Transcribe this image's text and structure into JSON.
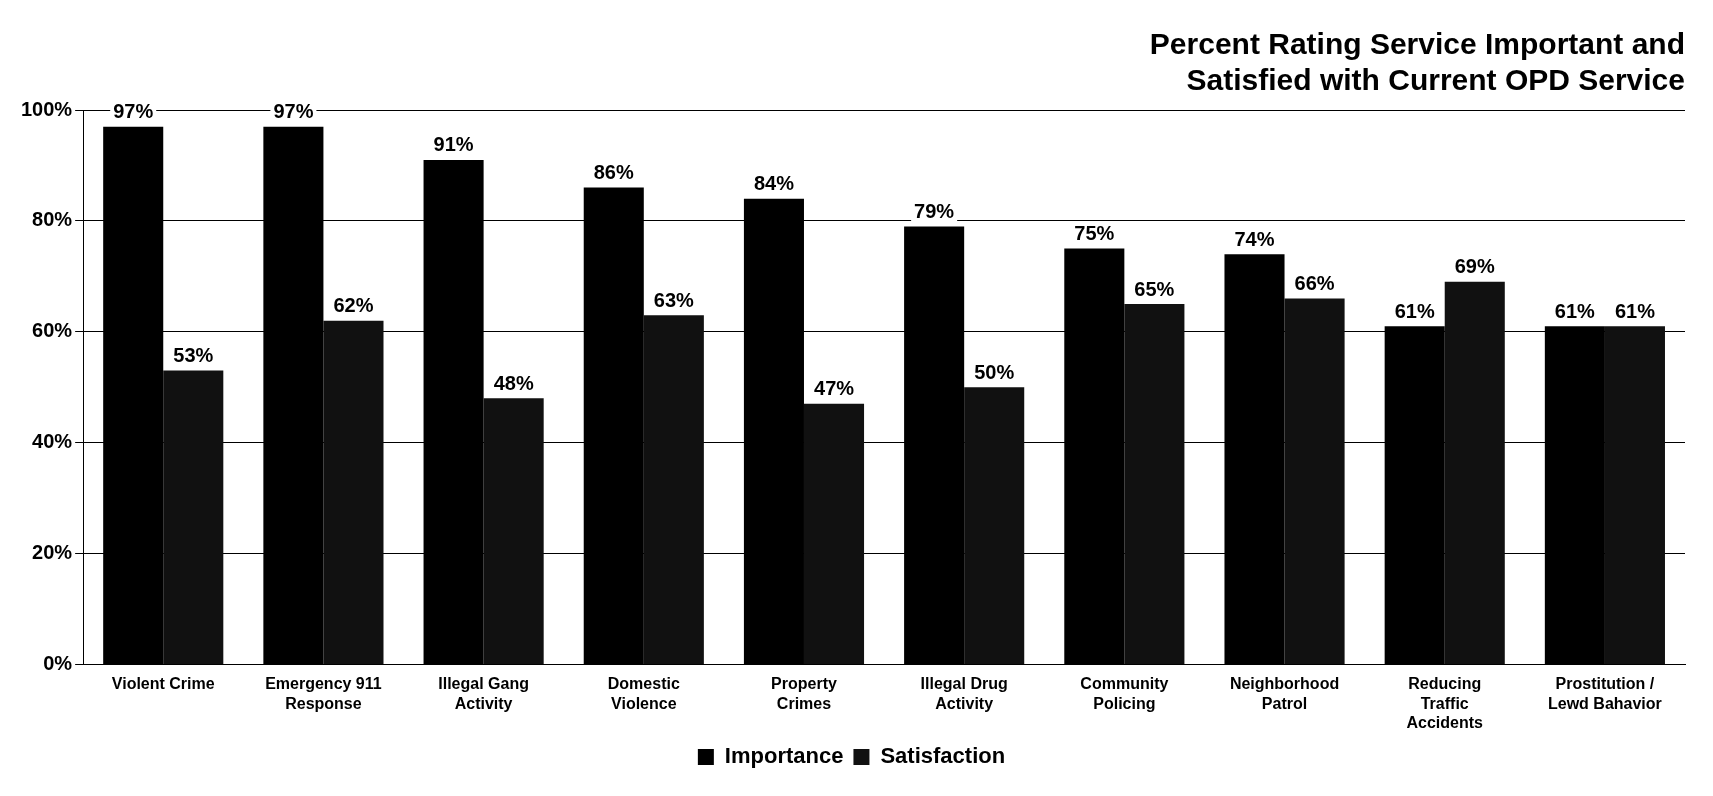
{
  "chart_data": {
    "type": "bar",
    "title": "Percent Rating Service Important and Satisfied with Current OPD Service",
    "categories": [
      "Violent Crime",
      "Emergency 911 Response",
      "Illegal Gang Activity",
      "Domestic Violence",
      "Property Crimes",
      "Illegal Drug Activity",
      "Community Policing",
      "Neighborhood Patrol",
      "Reducing Traffic Accidents",
      "Prostitution / Lewd Bahavior"
    ],
    "series": [
      {
        "name": "Importance",
        "color": "#000000",
        "values": [
          97,
          97,
          91,
          86,
          84,
          79,
          75,
          74,
          61,
          61
        ],
        "value_labels": [
          "97%",
          "97%",
          "91%",
          "86%",
          "84%",
          "79%",
          "75%",
          "74%",
          "61%",
          "61%"
        ]
      },
      {
        "name": "Satisfaction",
        "color": "#111111",
        "values": [
          53,
          62,
          48,
          63,
          47,
          50,
          65,
          66,
          69,
          61
        ],
        "value_labels": [
          "53%",
          "62%",
          "48%",
          "63%",
          "47%",
          "50%",
          "65%",
          "66%",
          "69%",
          "61%"
        ]
      }
    ],
    "ylim": [
      0,
      100
    ],
    "yticks": [
      {
        "value": 0,
        "label": "0%"
      },
      {
        "value": 20,
        "label": "20%"
      },
      {
        "value": 40,
        "label": "40%"
      },
      {
        "value": 60,
        "label": "60%"
      },
      {
        "value": 80,
        "label": "80%"
      },
      {
        "value": 100,
        "label": "100%"
      }
    ],
    "grid": "y",
    "legend": "bottom"
  }
}
